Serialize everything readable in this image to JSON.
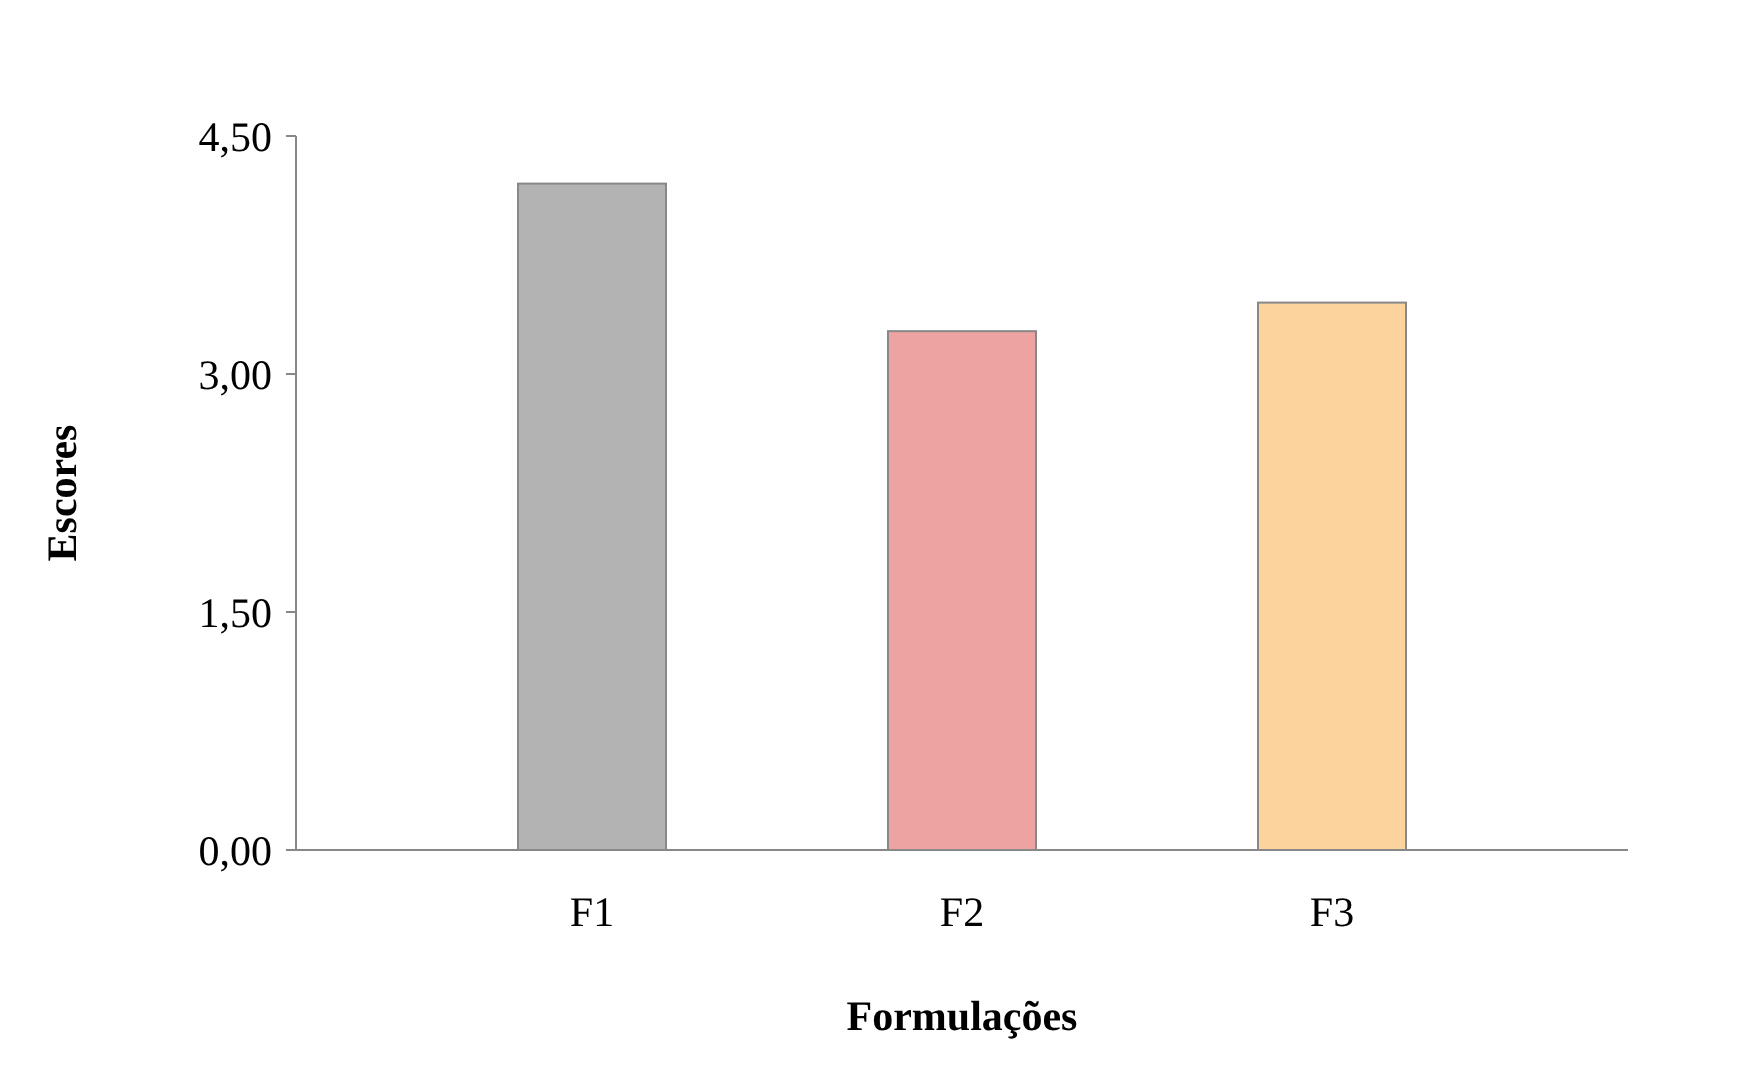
{
  "chart_data": {
    "type": "bar",
    "xlabel": "Formulações",
    "ylabel": "Escores",
    "categories": [
      "F1",
      "F2",
      "F3"
    ],
    "values": [
      4.2,
      3.27,
      3.45
    ],
    "colors": [
      "#b3b3b3",
      "#eea3a3",
      "#fdd39d"
    ],
    "ylim": [
      0,
      4.5
    ],
    "yticks": [
      {
        "value": 0,
        "label": "0,00"
      },
      {
        "value": 1.5,
        "label": "1,50"
      },
      {
        "value": 3,
        "label": "3,00"
      },
      {
        "value": 4.5,
        "label": "4,50"
      }
    ],
    "grid": false
  }
}
